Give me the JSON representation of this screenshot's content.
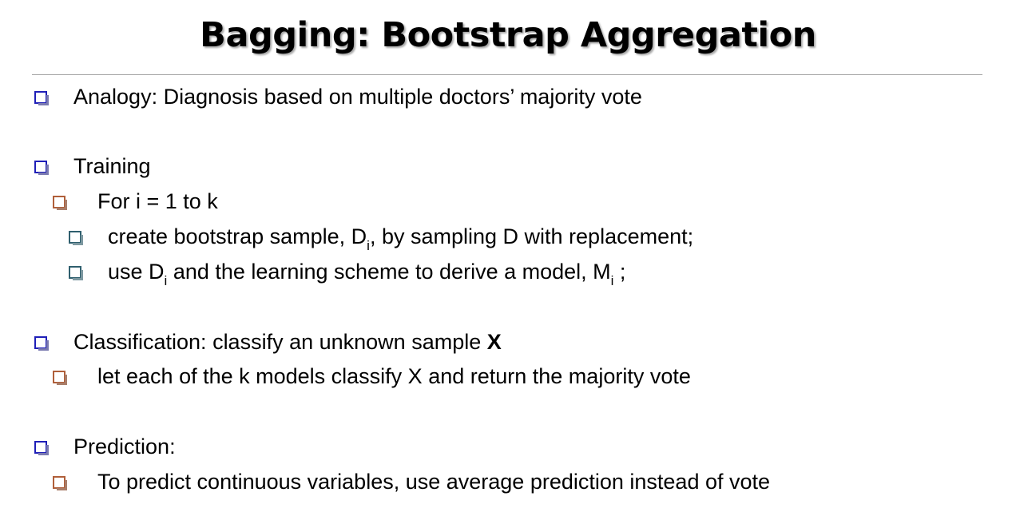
{
  "slide": {
    "title": "Bagging: Bootstrap Aggregation",
    "colors": {
      "level1_bullet": "#1f1fb8",
      "level2_bullet": "#b05f3a",
      "level3_bullet": "#2f5f6e",
      "divider": "#a6a6a6"
    },
    "bullets": {
      "analogy": "Analogy: Diagnosis based on multiple doctors’ majority vote",
      "training": "Training",
      "for_loop": "For i = 1 to k",
      "bootstrap": {
        "pre": "create bootstrap sample, D",
        "sub": "i",
        "post": ", by sampling D with replacement;"
      },
      "derive": {
        "pre": "use D",
        "sub1": "i",
        "mid": " and the learning scheme to derive a model, M",
        "sub2": "i",
        "post": " ;"
      },
      "classification": {
        "text": "Classification: classify an unknown sample ",
        "bold": "X"
      },
      "classify_each": "let each of the k models classify X and return the majority vote",
      "prediction": "Prediction:",
      "predict_continuous": "To predict continuous variables, use average prediction instead of vote"
    }
  }
}
